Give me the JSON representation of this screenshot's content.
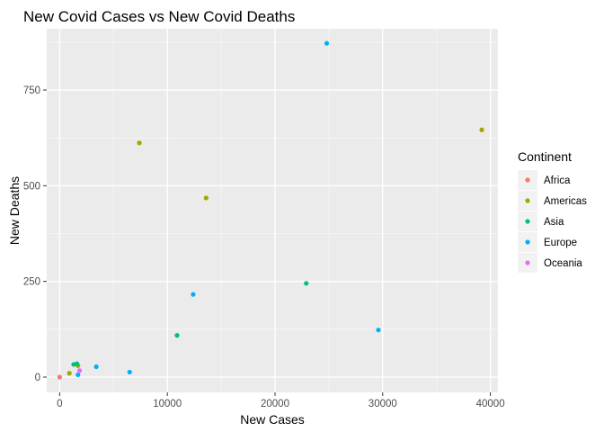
{
  "chart_data": {
    "type": "scatter",
    "title": "New Covid Cases vs New Covid Deaths",
    "xlabel": "New Cases",
    "ylabel": "New Deaths",
    "xlim": [
      -1200,
      40700
    ],
    "ylim": [
      -40,
      910
    ],
    "x_ticks": [
      0,
      10000,
      20000,
      30000,
      40000
    ],
    "x_tick_labels": [
      "0",
      "10000",
      "20000",
      "30000",
      "40000"
    ],
    "y_ticks": [
      0,
      250,
      500,
      750
    ],
    "y_tick_labels": [
      "0",
      "250",
      "500",
      "750"
    ],
    "grid": true,
    "legend": {
      "title": "Continent",
      "placement": "right"
    },
    "series": [
      {
        "name": "Africa",
        "color": "#F8766D",
        "points": [
          [
            0,
            0
          ]
        ]
      },
      {
        "name": "Americas",
        "color": "#A3A500",
        "points": [
          [
            7400,
            612
          ],
          [
            13600,
            468
          ],
          [
            39200,
            646
          ],
          [
            900,
            10
          ],
          [
            1700,
            30
          ]
        ]
      },
      {
        "name": "Asia",
        "color": "#00BF7D",
        "points": [
          [
            22900,
            245
          ],
          [
            10900,
            109
          ],
          [
            1300,
            33
          ],
          [
            1600,
            35
          ]
        ]
      },
      {
        "name": "Europe",
        "color": "#00B0F6",
        "points": [
          [
            24800,
            872
          ],
          [
            12400,
            216
          ],
          [
            29600,
            123
          ],
          [
            6500,
            13
          ],
          [
            3400,
            27
          ],
          [
            1700,
            6
          ]
        ]
      },
      {
        "name": "Oceania",
        "color": "#E76BF3",
        "points": [
          [
            1850,
            17
          ]
        ]
      }
    ]
  }
}
